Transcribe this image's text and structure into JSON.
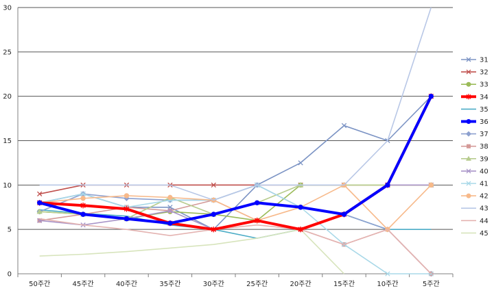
{
  "chart_data": {
    "type": "line",
    "title": "",
    "xlabel": "",
    "ylabel": "",
    "ylim": [
      0,
      30
    ],
    "yticks": [
      0,
      5,
      10,
      15,
      20,
      25,
      30
    ],
    "grid": true,
    "legend_position": "right",
    "categories": [
      "50주간",
      "45주간",
      "40주간",
      "35주간",
      "30주간",
      "25주간",
      "20주간",
      "15주간",
      "10주간",
      "5주간"
    ],
    "series": [
      {
        "name": "31",
        "color": "#7b93c4",
        "marker": "x",
        "thick": false,
        "values": [
          8,
          9,
          7.5,
          7.5,
          5,
          10,
          12.5,
          16.7,
          15,
          20
        ]
      },
      {
        "name": "32",
        "color": "#c0504d",
        "marker": "x",
        "thick": false,
        "values": [
          9,
          10,
          10,
          10,
          10,
          10,
          10,
          10,
          10,
          10
        ]
      },
      {
        "name": "33",
        "color": "#9bbb59",
        "marker": "circle",
        "thick": false,
        "values": [
          7,
          6.7,
          6.2,
          7,
          6.7,
          6,
          10,
          10,
          10,
          10
        ]
      },
      {
        "name": "34",
        "color": "#ff0000",
        "marker": "star",
        "thick": true,
        "values": [
          8,
          7.7,
          7.3,
          5.7,
          5,
          6,
          5,
          6.7,
          10,
          20
        ]
      },
      {
        "name": "35",
        "color": "#4bacc6",
        "marker": "none",
        "thick": false,
        "values": [
          7.2,
          6.8,
          6.5,
          5.5,
          5,
          4,
          5,
          6.7,
          5,
          5
        ]
      },
      {
        "name": "36",
        "color": "#0000ff",
        "marker": "circle",
        "thick": true,
        "values": [
          8,
          6.7,
          6.2,
          5.7,
          6.7,
          8,
          7.5,
          6.7,
          10,
          20
        ]
      },
      {
        "name": "37",
        "color": "#8da0cf",
        "marker": "diamond",
        "thick": false,
        "values": [
          7,
          9,
          8.5,
          8.3,
          8.3,
          10,
          7.5,
          6.7,
          5,
          0
        ]
      },
      {
        "name": "38",
        "color": "#d49a98",
        "marker": "square",
        "thick": false,
        "values": [
          6,
          6.7,
          7.5,
          7.1,
          8.3,
          6,
          5,
          3.3,
          5,
          0
        ]
      },
      {
        "name": "39",
        "color": "#b7cc8e",
        "marker": "triangle",
        "thick": false,
        "values": [
          7,
          6.7,
          6.2,
          8.6,
          6.7,
          8,
          10,
          10,
          10,
          10
        ]
      },
      {
        "name": "40",
        "color": "#a894c8",
        "marker": "x",
        "thick": false,
        "values": [
          6,
          5.5,
          6.2,
          7.1,
          5,
          6,
          5,
          6.7,
          10,
          10
        ]
      },
      {
        "name": "41",
        "color": "#a8d8e8",
        "marker": "x",
        "thick": false,
        "values": [
          8,
          9,
          7.5,
          8.3,
          8.3,
          10,
          7.5,
          3.3,
          0,
          0
        ]
      },
      {
        "name": "42",
        "color": "#f7b98a",
        "marker": "circle",
        "thick": false,
        "values": [
          8,
          8.5,
          8.8,
          8.6,
          8.3,
          6,
          7.5,
          10,
          5,
          10
        ]
      },
      {
        "name": "43",
        "color": "#b8c7e6",
        "marker": "none",
        "thick": false,
        "values": [
          10,
          10,
          10,
          10,
          8.3,
          10,
          10,
          10,
          15,
          30
        ]
      },
      {
        "name": "44",
        "color": "#e4b3b1",
        "marker": "none",
        "thick": false,
        "values": [
          6.2,
          5.5,
          5,
          4.3,
          5,
          5.5,
          5,
          3.3,
          5,
          0
        ]
      },
      {
        "name": "45",
        "color": "#d7e4bc",
        "marker": "none",
        "thick": false,
        "values": [
          2,
          2.2,
          2.5,
          2.9,
          3.3,
          4,
          5,
          0,
          null,
          null
        ]
      }
    ]
  }
}
